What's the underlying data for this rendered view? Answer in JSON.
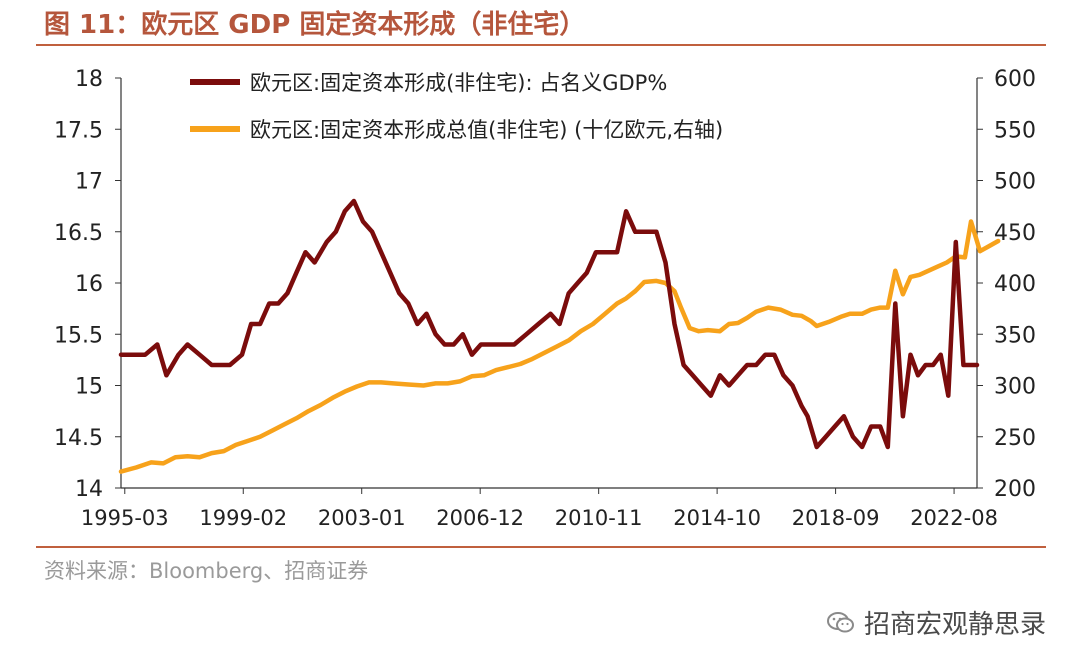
{
  "figure": {
    "title": "图 11：欧元区 GDP 固定资本形成（非住宅）",
    "source": "资料来源：Bloomberg、招商证券",
    "watermark": "招商宏观静思录"
  },
  "colors": {
    "title": "#b5563c",
    "series_left": "#7b0c0c",
    "series_right": "#f7a21b"
  },
  "chart_data": {
    "type": "line",
    "x_tick_labels": [
      "1995-03",
      "1999-02",
      "2003-01",
      "2006-12",
      "2010-11",
      "2014-10",
      "2018-09",
      "2022-08"
    ],
    "x_tick_years": [
      1995.125,
      1999.042,
      2002.958,
      2006.875,
      2010.792,
      2014.708,
      2018.625,
      2022.542
    ],
    "xlim": [
      1995.0,
      2023.3
    ],
    "y_left": {
      "ylim": [
        14,
        18
      ],
      "ticks": [
        14,
        14.5,
        15,
        15.5,
        16,
        16.5,
        17,
        17.5,
        18
      ],
      "tick_labels": [
        "14",
        "14.5",
        "15",
        "15.5",
        "16",
        "16.5",
        "17",
        "17.5",
        "18"
      ]
    },
    "y_right": {
      "ylim": [
        200,
        600
      ],
      "ticks": [
        200,
        250,
        300,
        350,
        400,
        450,
        500,
        550,
        600
      ],
      "tick_labels": [
        "200",
        "250",
        "300",
        "350",
        "400",
        "450",
        "500",
        "550",
        "600"
      ]
    },
    "series": [
      {
        "name": "欧元区:固定资本形成(非住宅): 占名义GDP%",
        "axis": "left",
        "color": "#7b0c0c",
        "points": [
          [
            1995.0,
            15.3
          ],
          [
            1995.4,
            15.3
          ],
          [
            1995.8,
            15.3
          ],
          [
            1996.2,
            15.4
          ],
          [
            1996.5,
            15.1
          ],
          [
            1996.9,
            15.3
          ],
          [
            1997.2,
            15.4
          ],
          [
            1997.6,
            15.3
          ],
          [
            1998.0,
            15.2
          ],
          [
            1998.6,
            15.2
          ],
          [
            1999.0,
            15.3
          ],
          [
            1999.3,
            15.6
          ],
          [
            1999.6,
            15.6
          ],
          [
            1999.9,
            15.8
          ],
          [
            2000.2,
            15.8
          ],
          [
            2000.5,
            15.9
          ],
          [
            2000.8,
            16.1
          ],
          [
            2001.1,
            16.3
          ],
          [
            2001.4,
            16.2
          ],
          [
            2001.8,
            16.4
          ],
          [
            2002.1,
            16.5
          ],
          [
            2002.4,
            16.7
          ],
          [
            2002.7,
            16.8
          ],
          [
            2003.0,
            16.6
          ],
          [
            2003.3,
            16.5
          ],
          [
            2003.6,
            16.3
          ],
          [
            2003.9,
            16.1
          ],
          [
            2004.2,
            15.9
          ],
          [
            2004.5,
            15.8
          ],
          [
            2004.8,
            15.6
          ],
          [
            2005.1,
            15.7
          ],
          [
            2005.4,
            15.5
          ],
          [
            2005.7,
            15.4
          ],
          [
            2006.0,
            15.4
          ],
          [
            2006.3,
            15.5
          ],
          [
            2006.6,
            15.3
          ],
          [
            2006.9,
            15.4
          ],
          [
            2007.5,
            15.4
          ],
          [
            2008.0,
            15.4
          ],
          [
            2008.4,
            15.5
          ],
          [
            2008.8,
            15.6
          ],
          [
            2009.2,
            15.7
          ],
          [
            2009.5,
            15.6
          ],
          [
            2009.8,
            15.9
          ],
          [
            2010.1,
            16.0
          ],
          [
            2010.4,
            16.1
          ],
          [
            2010.7,
            16.3
          ],
          [
            2011.0,
            16.3
          ],
          [
            2011.4,
            16.3
          ],
          [
            2011.7,
            16.7
          ],
          [
            2012.0,
            16.5
          ],
          [
            2012.3,
            16.5
          ],
          [
            2012.7,
            16.5
          ],
          [
            2013.0,
            16.2
          ],
          [
            2013.3,
            15.6
          ],
          [
            2013.6,
            15.2
          ],
          [
            2013.9,
            15.1
          ],
          [
            2014.2,
            15.0
          ],
          [
            2014.5,
            14.9
          ],
          [
            2014.8,
            15.1
          ],
          [
            2015.1,
            15.0
          ],
          [
            2015.4,
            15.1
          ],
          [
            2015.7,
            15.2
          ],
          [
            2016.0,
            15.2
          ],
          [
            2016.3,
            15.3
          ],
          [
            2016.6,
            15.3
          ],
          [
            2016.9,
            15.1
          ],
          [
            2017.2,
            15.0
          ],
          [
            2017.5,
            14.8
          ],
          [
            2017.7,
            14.7
          ],
          [
            2018.0,
            14.4
          ],
          [
            2018.3,
            14.5
          ],
          [
            2018.6,
            14.6
          ],
          [
            2018.9,
            14.7
          ],
          [
            2019.2,
            14.5
          ],
          [
            2019.5,
            14.4
          ],
          [
            2019.8,
            14.6
          ],
          [
            2020.1,
            14.6
          ],
          [
            2020.35,
            14.4
          ],
          [
            2020.6,
            15.8
          ],
          [
            2020.85,
            14.7
          ],
          [
            2021.1,
            15.3
          ],
          [
            2021.35,
            15.1
          ],
          [
            2021.6,
            15.2
          ],
          [
            2021.85,
            15.2
          ],
          [
            2022.1,
            15.3
          ],
          [
            2022.35,
            14.9
          ],
          [
            2022.6,
            16.4
          ],
          [
            2022.85,
            15.2
          ],
          [
            2023.1,
            15.2
          ],
          [
            2023.3,
            15.2
          ]
        ]
      },
      {
        "name": "欧元区:固定资本形成总值(非住宅) (十亿欧元,右轴)",
        "axis": "right",
        "color": "#f7a21b",
        "points": [
          [
            1995.0,
            216
          ],
          [
            1995.5,
            220
          ],
          [
            1996.0,
            225
          ],
          [
            1996.4,
            224
          ],
          [
            1996.8,
            230
          ],
          [
            1997.2,
            231
          ],
          [
            1997.6,
            230
          ],
          [
            1998.0,
            234
          ],
          [
            1998.4,
            236
          ],
          [
            1998.8,
            242
          ],
          [
            1999.2,
            246
          ],
          [
            1999.6,
            250
          ],
          [
            2000.0,
            256
          ],
          [
            2000.4,
            262
          ],
          [
            2000.8,
            268
          ],
          [
            2001.2,
            275
          ],
          [
            2001.6,
            281
          ],
          [
            2002.0,
            288
          ],
          [
            2002.4,
            294
          ],
          [
            2002.8,
            299
          ],
          [
            2003.2,
            303
          ],
          [
            2003.6,
            303
          ],
          [
            2004.0,
            302
          ],
          [
            2004.5,
            301
          ],
          [
            2005.0,
            300
          ],
          [
            2005.4,
            302
          ],
          [
            2005.8,
            302
          ],
          [
            2006.2,
            304
          ],
          [
            2006.6,
            309
          ],
          [
            2007.0,
            310
          ],
          [
            2007.4,
            315
          ],
          [
            2007.8,
            318
          ],
          [
            2008.2,
            321
          ],
          [
            2008.6,
            326
          ],
          [
            2009.0,
            332
          ],
          [
            2009.4,
            338
          ],
          [
            2009.8,
            344
          ],
          [
            2010.2,
            353
          ],
          [
            2010.6,
            360
          ],
          [
            2011.0,
            370
          ],
          [
            2011.4,
            380
          ],
          [
            2011.7,
            385
          ],
          [
            2012.0,
            392
          ],
          [
            2012.3,
            401
          ],
          [
            2012.7,
            402
          ],
          [
            2013.0,
            400
          ],
          [
            2013.3,
            392
          ],
          [
            2013.5,
            377
          ],
          [
            2013.8,
            356
          ],
          [
            2014.1,
            353
          ],
          [
            2014.4,
            354
          ],
          [
            2014.8,
            353
          ],
          [
            2015.1,
            360
          ],
          [
            2015.4,
            361
          ],
          [
            2015.7,
            366
          ],
          [
            2016.0,
            372
          ],
          [
            2016.4,
            376
          ],
          [
            2016.8,
            374
          ],
          [
            2017.2,
            369
          ],
          [
            2017.5,
            368
          ],
          [
            2017.8,
            363
          ],
          [
            2018.0,
            358
          ],
          [
            2018.4,
            362
          ],
          [
            2018.8,
            367
          ],
          [
            2019.1,
            370
          ],
          [
            2019.5,
            370
          ],
          [
            2019.8,
            374
          ],
          [
            2020.1,
            376
          ],
          [
            2020.35,
            376
          ],
          [
            2020.6,
            412
          ],
          [
            2020.85,
            389
          ],
          [
            2021.1,
            406
          ],
          [
            2021.4,
            408
          ],
          [
            2021.7,
            412
          ],
          [
            2022.0,
            416
          ],
          [
            2022.3,
            420
          ],
          [
            2022.6,
            426
          ],
          [
            2022.9,
            425
          ],
          [
            2023.1,
            460
          ],
          [
            2023.4,
            431
          ],
          [
            2023.7,
            436
          ],
          [
            2024.0,
            441
          ]
        ]
      }
    ]
  }
}
